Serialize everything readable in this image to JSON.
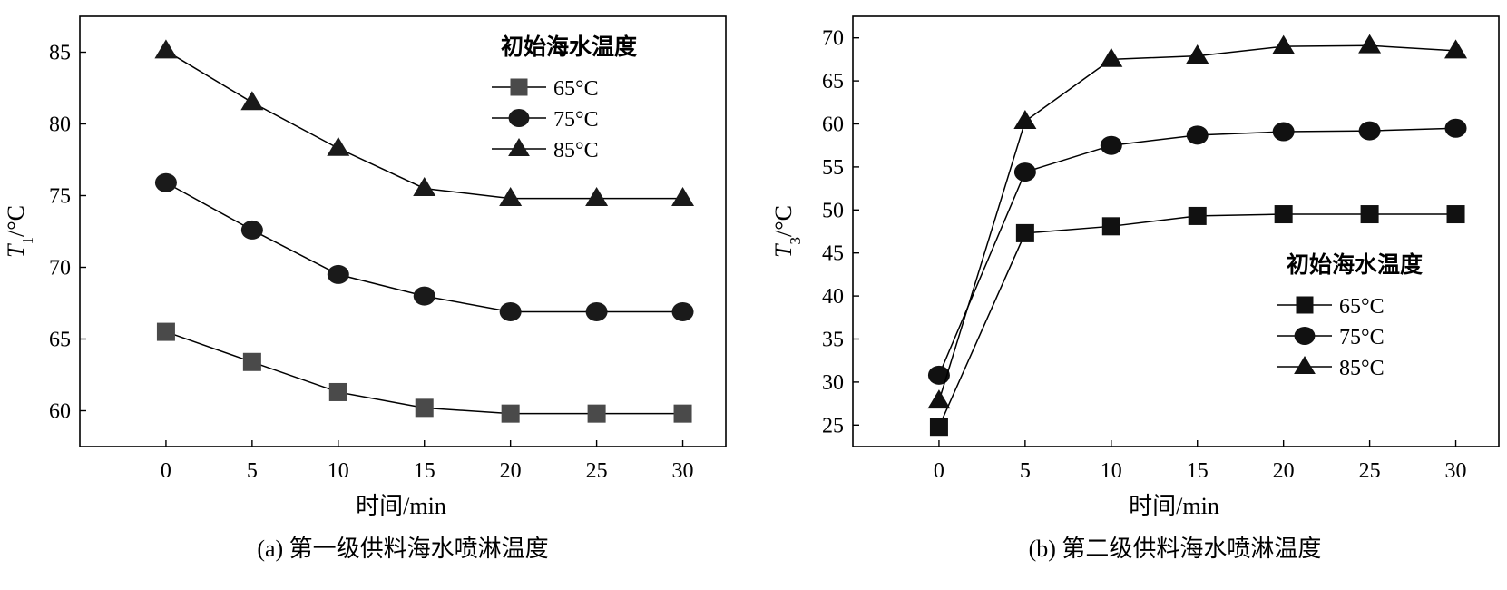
{
  "chart_data": [
    {
      "type": "line",
      "caption": "(a) 第一级供料海水喷淋温度",
      "xlabel": "时间/min",
      "ylabel": "T1/°C",
      "ylabel_main": "T",
      "ylabel_sub": "1",
      "ylabel_unit": "/°C",
      "xlim": [
        -5,
        32.5
      ],
      "ylim": [
        57.5,
        87.5
      ],
      "xticks": [
        0,
        5,
        10,
        15,
        20,
        25,
        30
      ],
      "yticks": [
        60,
        65,
        70,
        75,
        80,
        85
      ],
      "x": [
        0,
        5,
        10,
        15,
        20,
        25,
        30
      ],
      "legend": {
        "title": "初始海水温度",
        "position": "top-right"
      },
      "series": [
        {
          "name": "65°C",
          "marker": "square",
          "color": "#4a4a4a",
          "values": [
            65.5,
            63.4,
            61.3,
            60.2,
            59.8,
            59.8,
            59.8
          ]
        },
        {
          "name": "75°C",
          "marker": "circle",
          "color": "#1a1a1a",
          "values": [
            75.9,
            72.6,
            69.5,
            68.0,
            66.9,
            66.9,
            66.9
          ]
        },
        {
          "name": "85°C",
          "marker": "triangle",
          "color": "#1a1a1a",
          "values": [
            85.1,
            81.5,
            78.3,
            75.5,
            74.8,
            74.8,
            74.8
          ]
        }
      ]
    },
    {
      "type": "line",
      "caption": "(b) 第二级供料海水喷淋温度",
      "xlabel": "时间/min",
      "ylabel": "T3/°C",
      "ylabel_main": "T",
      "ylabel_sub": "3",
      "ylabel_unit": "/°C",
      "xlim": [
        -5,
        32.5
      ],
      "ylim": [
        22.5,
        72.5
      ],
      "xticks": [
        0,
        5,
        10,
        15,
        20,
        25,
        30
      ],
      "yticks": [
        25,
        30,
        35,
        40,
        45,
        50,
        55,
        60,
        65,
        70
      ],
      "x": [
        0,
        5,
        10,
        15,
        20,
        25,
        30
      ],
      "legend": {
        "title": "初始海水温度",
        "position": "center-right"
      },
      "series": [
        {
          "name": "65°C",
          "marker": "square",
          "color": "#111111",
          "values": [
            24.8,
            47.3,
            48.1,
            49.3,
            49.5,
            49.5,
            49.5
          ]
        },
        {
          "name": "75°C",
          "marker": "circle",
          "color": "#111111",
          "values": [
            30.8,
            54.4,
            57.5,
            58.7,
            59.1,
            59.2,
            59.5
          ]
        },
        {
          "name": "85°C",
          "marker": "triangle",
          "color": "#111111",
          "values": [
            27.8,
            60.3,
            67.5,
            67.9,
            69.0,
            69.1,
            68.5
          ]
        }
      ]
    }
  ]
}
